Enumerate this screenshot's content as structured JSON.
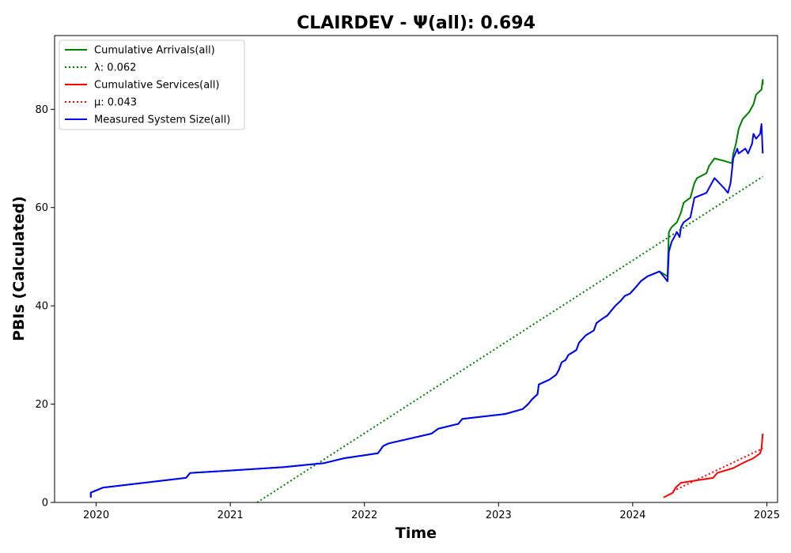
{
  "chart_data": {
    "type": "line",
    "title": "CLAIRDEV -  Ψ(all): 0.694",
    "xlabel": "Time",
    "ylabel": "PBIs (Calculated)",
    "xlim": [
      2019.69,
      2025.08
    ],
    "ylim": [
      0,
      95
    ],
    "x_ticks": [
      2020,
      2021,
      2022,
      2023,
      2024,
      2025
    ],
    "x_tick_labels": [
      "2020",
      "2021",
      "2022",
      "2023",
      "2024",
      "2025"
    ],
    "y_ticks": [
      0,
      20,
      40,
      60,
      80
    ],
    "y_tick_labels": [
      "0",
      "20",
      "40",
      "60",
      "80"
    ],
    "grid": false,
    "legend_position": "top-left",
    "series": [
      {
        "name": "Cumulative Arrivals(all)",
        "style": "solid",
        "color": "#008000",
        "x": [],
        "y": []
      }
    ]
  },
  "legend": {
    "items": [
      {
        "label": "Cumulative Arrivals(all)",
        "color": "#008000",
        "style": "solid"
      },
      {
        "label": "λ: 0.062",
        "color": "#008000",
        "style": "dotted"
      },
      {
        "label": "Cumulative Services(all)",
        "color": "#ff0000",
        "style": "solid"
      },
      {
        "label": "μ: 0.043",
        "color": "#ff0000",
        "style": "dotted"
      },
      {
        "label": "Measured System Size(all)",
        "color": "#0000ff",
        "style": "solid"
      }
    ]
  },
  "series_points": {
    "arrivals": [
      [
        2019.96,
        1
      ],
      [
        2019.96,
        2
      ],
      [
        2020.05,
        3
      ],
      [
        2020.67,
        5
      ],
      [
        2020.7,
        6
      ],
      [
        2021.0,
        6.5
      ],
      [
        2021.4,
        7.2
      ],
      [
        2021.7,
        8
      ],
      [
        2021.85,
        9
      ],
      [
        2022.1,
        10
      ],
      [
        2022.14,
        11.5
      ],
      [
        2022.18,
        12
      ],
      [
        2022.5,
        14
      ],
      [
        2022.55,
        15
      ],
      [
        2022.7,
        16
      ],
      [
        2022.73,
        17
      ],
      [
        2023.05,
        18
      ],
      [
        2023.18,
        19
      ],
      [
        2023.22,
        20
      ],
      [
        2023.25,
        21
      ],
      [
        2023.29,
        22
      ],
      [
        2023.3,
        24
      ],
      [
        2023.38,
        25
      ],
      [
        2023.43,
        26
      ],
      [
        2023.45,
        27
      ],
      [
        2023.47,
        28.5
      ],
      [
        2023.5,
        29
      ],
      [
        2023.52,
        30
      ],
      [
        2023.58,
        31
      ],
      [
        2023.6,
        32.5
      ],
      [
        2023.65,
        34
      ],
      [
        2023.71,
        35
      ],
      [
        2023.73,
        36.5
      ],
      [
        2023.78,
        37.5
      ],
      [
        2023.81,
        38
      ],
      [
        2023.84,
        39
      ],
      [
        2023.87,
        40
      ],
      [
        2023.91,
        41
      ],
      [
        2023.94,
        42
      ],
      [
        2023.98,
        42.5
      ],
      [
        2024.03,
        44
      ],
      [
        2024.06,
        45
      ],
      [
        2024.11,
        46
      ],
      [
        2024.2,
        47
      ],
      [
        2024.23,
        46.5
      ],
      [
        2024.26,
        46
      ],
      [
        2024.27,
        55
      ],
      [
        2024.29,
        56
      ],
      [
        2024.33,
        57
      ],
      [
        2024.36,
        59
      ],
      [
        2024.38,
        61
      ],
      [
        2024.43,
        62
      ],
      [
        2024.46,
        65
      ],
      [
        2024.48,
        66
      ],
      [
        2024.55,
        67
      ],
      [
        2024.57,
        68.5
      ],
      [
        2024.61,
        70
      ],
      [
        2024.68,
        69.5
      ],
      [
        2024.74,
        69
      ],
      [
        2024.75,
        71
      ],
      [
        2024.77,
        73
      ],
      [
        2024.79,
        76
      ],
      [
        2024.82,
        78
      ],
      [
        2024.87,
        79.5
      ],
      [
        2024.9,
        81
      ],
      [
        2024.92,
        83
      ],
      [
        2024.96,
        84
      ],
      [
        2024.97,
        86
      ],
      [
        2024.97,
        85
      ]
    ],
    "lambda_line": [
      [
        2021.2,
        0
      ],
      [
        2024.97,
        66.3
      ]
    ],
    "services": [
      [
        2024.23,
        1
      ],
      [
        2024.3,
        2
      ],
      [
        2024.32,
        3
      ],
      [
        2024.36,
        4
      ],
      [
        2024.6,
        5
      ],
      [
        2024.63,
        6
      ],
      [
        2024.75,
        7
      ],
      [
        2024.82,
        8
      ],
      [
        2024.9,
        9
      ],
      [
        2024.95,
        10
      ],
      [
        2024.96,
        11
      ],
      [
        2024.97,
        14
      ]
    ],
    "mu_line": [
      [
        2024.3,
        2.3
      ],
      [
        2024.97,
        11
      ]
    ],
    "system_size": [
      [
        2019.96,
        1
      ],
      [
        2019.96,
        2
      ],
      [
        2020.05,
        3
      ],
      [
        2020.67,
        5
      ],
      [
        2020.7,
        6
      ],
      [
        2021.0,
        6.5
      ],
      [
        2021.4,
        7.2
      ],
      [
        2021.7,
        8
      ],
      [
        2021.85,
        9
      ],
      [
        2022.1,
        10
      ],
      [
        2022.14,
        11.5
      ],
      [
        2022.18,
        12
      ],
      [
        2022.5,
        14
      ],
      [
        2022.55,
        15
      ],
      [
        2022.7,
        16
      ],
      [
        2022.73,
        17
      ],
      [
        2023.05,
        18
      ],
      [
        2023.18,
        19
      ],
      [
        2023.22,
        20
      ],
      [
        2023.25,
        21
      ],
      [
        2023.29,
        22
      ],
      [
        2023.3,
        24
      ],
      [
        2023.38,
        25
      ],
      [
        2023.43,
        26
      ],
      [
        2023.45,
        27
      ],
      [
        2023.47,
        28.5
      ],
      [
        2023.5,
        29
      ],
      [
        2023.52,
        30
      ],
      [
        2023.58,
        31
      ],
      [
        2023.6,
        32.5
      ],
      [
        2023.65,
        34
      ],
      [
        2023.71,
        35
      ],
      [
        2023.73,
        36.5
      ],
      [
        2023.78,
        37.5
      ],
      [
        2023.81,
        38
      ],
      [
        2023.84,
        39
      ],
      [
        2023.87,
        40
      ],
      [
        2023.91,
        41
      ],
      [
        2023.94,
        42
      ],
      [
        2023.98,
        42.5
      ],
      [
        2024.03,
        44
      ],
      [
        2024.06,
        45
      ],
      [
        2024.11,
        46
      ],
      [
        2024.2,
        47
      ],
      [
        2024.23,
        46
      ],
      [
        2024.26,
        45
      ],
      [
        2024.27,
        51
      ],
      [
        2024.29,
        53
      ],
      [
        2024.31,
        54
      ],
      [
        2024.33,
        55
      ],
      [
        2024.35,
        54
      ],
      [
        2024.36,
        56
      ],
      [
        2024.38,
        57
      ],
      [
        2024.43,
        58
      ],
      [
        2024.46,
        62
      ],
      [
        2024.55,
        63
      ],
      [
        2024.57,
        64
      ],
      [
        2024.61,
        66
      ],
      [
        2024.68,
        64
      ],
      [
        2024.71,
        63
      ],
      [
        2024.73,
        65
      ],
      [
        2024.75,
        70
      ],
      [
        2024.78,
        72
      ],
      [
        2024.79,
        71
      ],
      [
        2024.84,
        72
      ],
      [
        2024.86,
        71
      ],
      [
        2024.89,
        73
      ],
      [
        2024.9,
        75
      ],
      [
        2024.92,
        74
      ],
      [
        2024.95,
        75
      ],
      [
        2024.96,
        77
      ],
      [
        2024.97,
        71
      ]
    ]
  }
}
